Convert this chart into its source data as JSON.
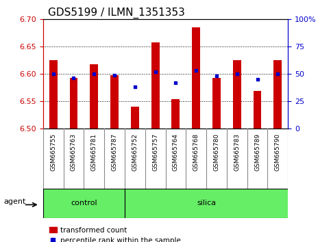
{
  "title": "GDS5199 / ILMN_1351353",
  "samples": [
    "GSM665755",
    "GSM665763",
    "GSM665781",
    "GSM665787",
    "GSM665752",
    "GSM665757",
    "GSM665764",
    "GSM665768",
    "GSM665780",
    "GSM665783",
    "GSM665789",
    "GSM665790"
  ],
  "groups": [
    "control",
    "control",
    "control",
    "control",
    "silica",
    "silica",
    "silica",
    "silica",
    "silica",
    "silica",
    "silica",
    "silica"
  ],
  "transformed_count": [
    6.625,
    6.592,
    6.617,
    6.597,
    6.54,
    6.658,
    6.553,
    6.685,
    6.593,
    6.625,
    6.568,
    6.625
  ],
  "percentile_rank": [
    50,
    46,
    50,
    49,
    38,
    52,
    42,
    53,
    48,
    50,
    45,
    50
  ],
  "ylim_left": [
    6.5,
    6.7
  ],
  "ylim_right": [
    0,
    100
  ],
  "yticks_left": [
    6.5,
    6.55,
    6.6,
    6.65,
    6.7
  ],
  "yticks_right": [
    0,
    25,
    50,
    75,
    100
  ],
  "bar_color": "#CC0000",
  "dot_color": "#0000CC",
  "bar_width": 0.4,
  "control_color": "#66EE66",
  "n_control": 4,
  "n_silica": 8,
  "agent_label": "agent",
  "legend_items": [
    "transformed count",
    "percentile rank within the sample"
  ],
  "title_fontsize": 11,
  "tick_fontsize": 8,
  "label_fontsize": 8,
  "xtick_bg": "#C8C8C8",
  "xtick_border": "#888888"
}
